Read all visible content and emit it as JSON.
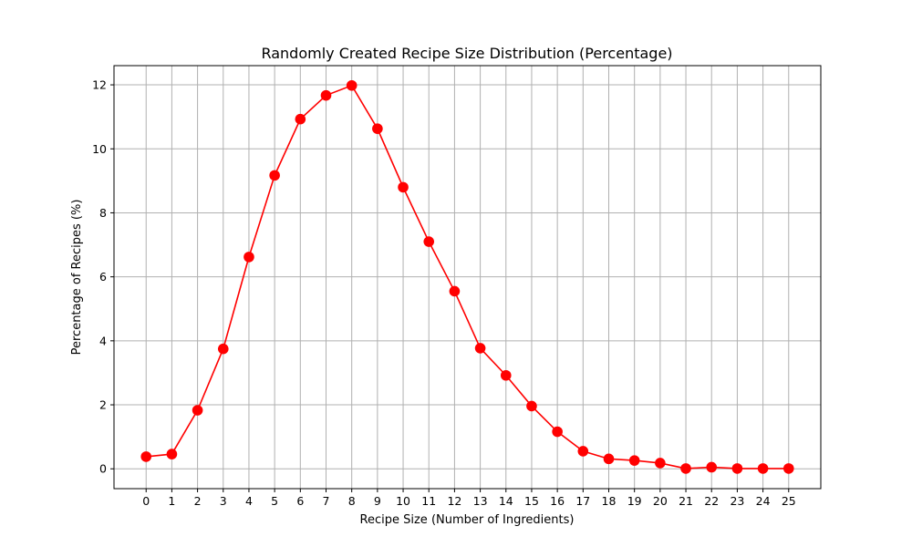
{
  "chart_data": {
    "type": "line",
    "title": "Randomly Created Recipe Size Distribution (Percentage)",
    "xlabel": "Recipe Size (Number of Ingredients)",
    "ylabel": "Percentage of Recipes (%)",
    "x": [
      0,
      1,
      2,
      3,
      4,
      5,
      6,
      7,
      8,
      9,
      10,
      11,
      12,
      13,
      14,
      15,
      16,
      17,
      18,
      19,
      20,
      21,
      22,
      23,
      24,
      25
    ],
    "series": [
      {
        "values": [
          0.38,
          0.46,
          1.83,
          3.75,
          6.62,
          9.17,
          10.93,
          11.67,
          11.98,
          10.63,
          8.8,
          7.1,
          5.55,
          3.77,
          2.92,
          1.96,
          1.16,
          0.55,
          0.31,
          0.26,
          0.18,
          0.01,
          0.05,
          0.01,
          0.01,
          0.01
        ],
        "color": "#ff0000",
        "marker": "circle"
      }
    ],
    "xlim": [
      -1.25,
      26.25
    ],
    "ylim": [
      -0.62,
      12.6
    ],
    "yticks": [
      0,
      2,
      4,
      6,
      8,
      10,
      12
    ],
    "grid": true
  }
}
